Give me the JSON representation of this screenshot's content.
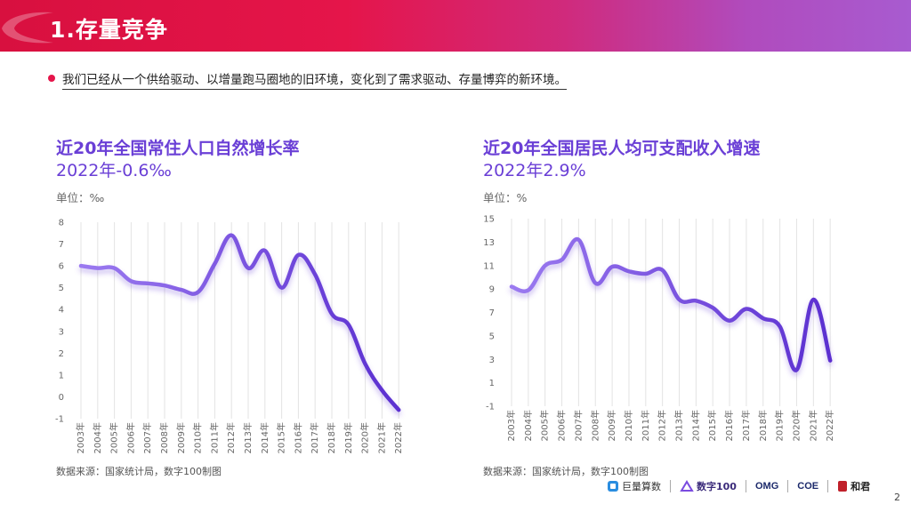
{
  "header": {
    "title": "1.存量竞争"
  },
  "bullet": {
    "text": "我们已经从一个供给驱动、以增量跑马圈地的旧环境，变化到了需求驱动、存量博弈的新环境。"
  },
  "left_chart": {
    "title": "近20年全国常住人口自然增长率",
    "subtitle": "2022年-0.6‰",
    "unit": "单位：‰",
    "source": "数据来源：国家统计局，数字100制图"
  },
  "right_chart": {
    "title": "近20年全国居民人均可支配收入增速",
    "subtitle": "2022年2.9%",
    "unit": "单位：%",
    "source": "数据来源：国家统计局，数字100制图"
  },
  "logos": [
    "巨量算数",
    "数字100",
    "OMG",
    "COE",
    "和君"
  ],
  "page_number": "2",
  "colors": {
    "accent": "#6a3fd6",
    "line_start": "#9b7af0",
    "line_end": "#5b2fd0",
    "header_red": "#e5154a",
    "header_purple": "#a85bd0"
  },
  "chart_data": [
    {
      "type": "line",
      "title": "近20年全国常住人口自然增长率",
      "ylabel": "单位：‰",
      "categories": [
        "2003年",
        "2004年",
        "2005年",
        "2006年",
        "2007年",
        "2008年",
        "2009年",
        "2010年",
        "2011年",
        "2012年",
        "2013年",
        "2014年",
        "2015年",
        "2016年",
        "2017年",
        "2018年",
        "2019年",
        "2020年",
        "2021年",
        "2022年"
      ],
      "values": [
        6.0,
        5.9,
        5.9,
        5.3,
        5.2,
        5.1,
        4.9,
        4.8,
        6.1,
        7.4,
        5.9,
        6.7,
        5.0,
        6.5,
        5.6,
        3.8,
        3.3,
        1.5,
        0.3,
        -0.6
      ],
      "yticks": [
        "8",
        "7",
        "6",
        "5",
        "4",
        "3",
        "2",
        "1",
        "0",
        "-1"
      ],
      "ylim": [
        -1,
        8
      ],
      "grid": "vertical"
    },
    {
      "type": "line",
      "title": "近20年全国居民人均可支配收入增速",
      "ylabel": "单位：%",
      "categories": [
        "2003年",
        "2004年",
        "2005年",
        "2006年",
        "2007年",
        "2008年",
        "2009年",
        "2010年",
        "2011年",
        "2012年",
        "2013年",
        "2014年",
        "2015年",
        "2016年",
        "2017年",
        "2018年",
        "2019年",
        "2020年",
        "2021年",
        "2022年"
      ],
      "values": [
        9.2,
        8.9,
        11.0,
        11.5,
        13.2,
        9.5,
        10.9,
        10.5,
        10.3,
        10.6,
        8.1,
        8.0,
        7.4,
        6.3,
        7.3,
        6.5,
        5.8,
        2.1,
        8.1,
        2.9
      ],
      "yticks": [
        "15",
        "13",
        "11",
        "9",
        "7",
        "5",
        "3",
        "1",
        "-1"
      ],
      "ylim": [
        -1,
        15
      ],
      "grid": "vertical"
    }
  ]
}
